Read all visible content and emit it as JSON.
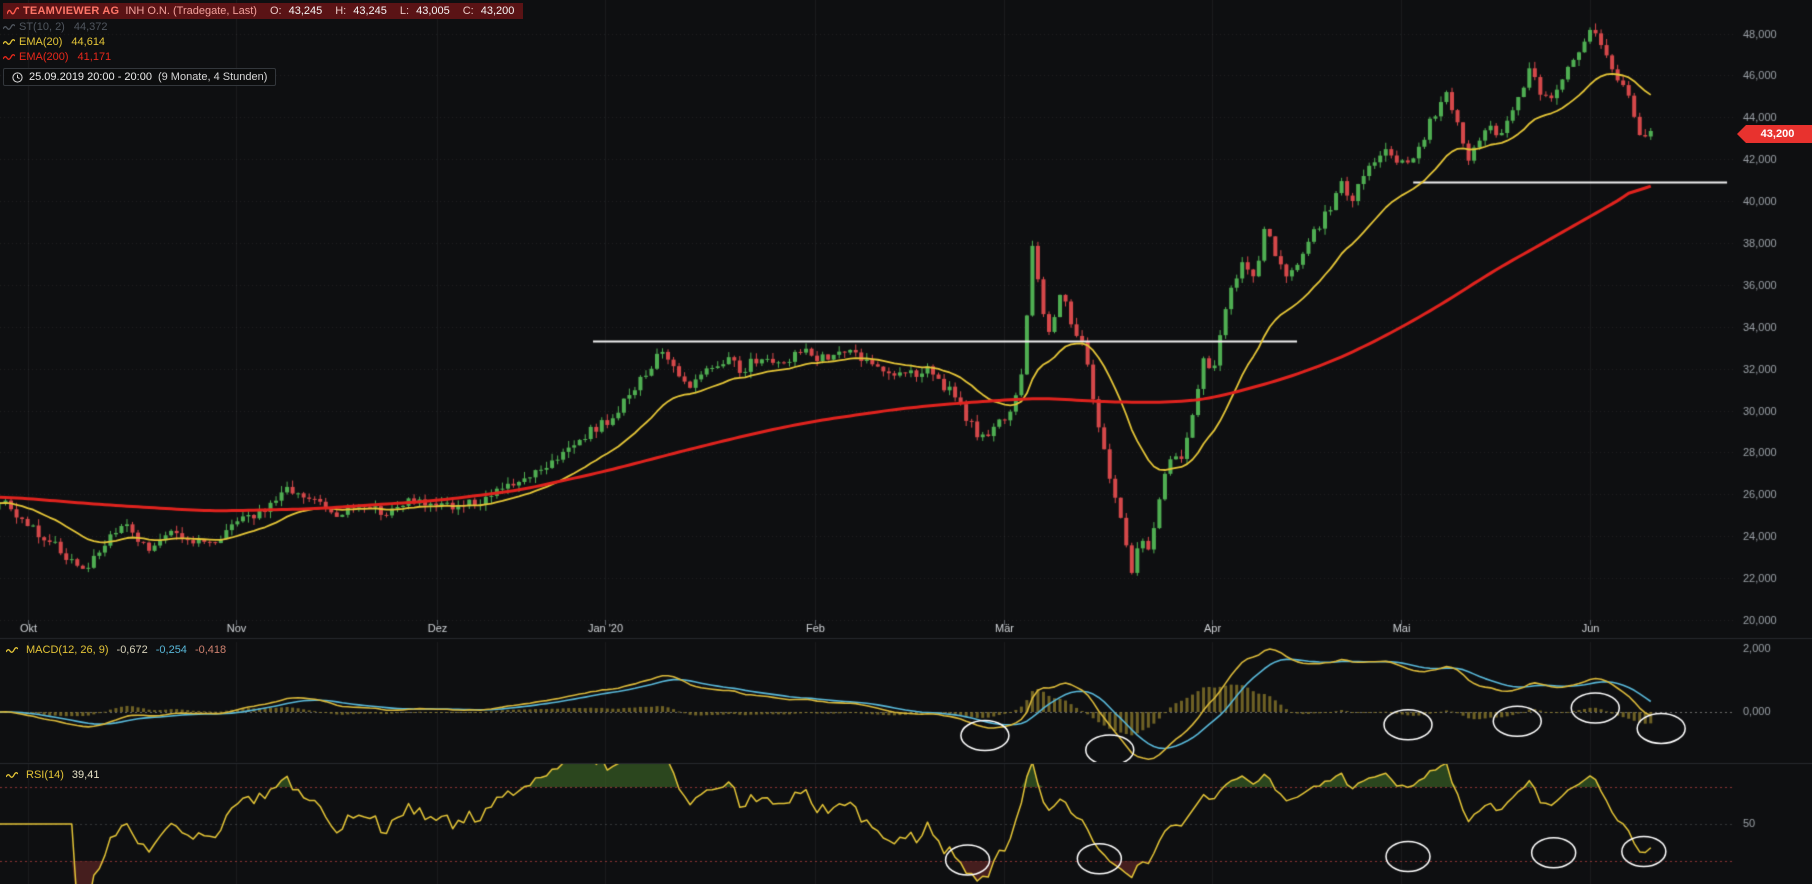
{
  "header": {
    "title": "TEAMVIEWER AG",
    "subtitle": "INH O.N. (Tradegate, Last)",
    "ohlc": {
      "o_label": "O:",
      "o_value": "43,245",
      "h_label": "H:",
      "h_value": "43,245",
      "l_label": "L:",
      "l_value": "43,005",
      "c_label": "C:",
      "c_value": "43,200"
    }
  },
  "indicators": {
    "st": {
      "label": "ST(10, 2)",
      "value": "44,372"
    },
    "ema20": {
      "label": "EMA(20)",
      "value": "44,614"
    },
    "ema200": {
      "label": "EMA(200)",
      "value": "41,171"
    }
  },
  "timebar": {
    "range": "25.09.2019 20:00 - 20:00",
    "period": "(9 Monate, 4 Stunden)"
  },
  "macd_legend": {
    "label": "MACD(12, 26, 9)",
    "v1": "-0,672",
    "v2": "-0,254",
    "v3": "-0,418"
  },
  "rsi_legend": {
    "label": "RSI(14)",
    "value": "39,41"
  },
  "last_price": {
    "value": "43,200"
  },
  "chart_data": {
    "type": "candlestick",
    "instrument": "TEAMVIEWER AG INH O.N. (Tradegate, Last)",
    "timeframe": "4 Stunden",
    "range_label": "9 Monate",
    "price_axis": {
      "min": 20.0,
      "max": 48.0,
      "ticks": [
        20,
        22,
        24,
        26,
        28,
        30,
        32,
        34,
        36,
        38,
        40,
        42,
        44,
        46,
        48
      ],
      "last_price": 43.2
    },
    "current_ohlc": {
      "open": 43.245,
      "high": 43.245,
      "low": 43.005,
      "close": 43.2
    },
    "x_months": [
      {
        "label": "Okt",
        "t": 0.016
      },
      {
        "label": "Nov",
        "t": 0.136
      },
      {
        "label": "Dez",
        "t": 0.252
      },
      {
        "label": "Jan '20",
        "t": 0.349
      },
      {
        "label": "Feb",
        "t": 0.47
      },
      {
        "label": "Mär",
        "t": 0.579
      },
      {
        "label": "Apr",
        "t": 0.699
      },
      {
        "label": "Mai",
        "t": 0.808
      },
      {
        "label": "Jun",
        "t": 0.917
      }
    ],
    "data_end_t": 0.952,
    "candle_count": 300,
    "close_path": [
      [
        0.0,
        25.8
      ],
      [
        0.01,
        24.9
      ],
      [
        0.022,
        24.2
      ],
      [
        0.035,
        23.3
      ],
      [
        0.048,
        22.3
      ],
      [
        0.06,
        23.6
      ],
      [
        0.072,
        24.5
      ],
      [
        0.085,
        23.4
      ],
      [
        0.1,
        24.1
      ],
      [
        0.112,
        23.6
      ],
      [
        0.125,
        23.9
      ],
      [
        0.14,
        24.7
      ],
      [
        0.155,
        25.4
      ],
      [
        0.168,
        26.3
      ],
      [
        0.18,
        25.7
      ],
      [
        0.195,
        24.9
      ],
      [
        0.208,
        25.6
      ],
      [
        0.222,
        25.1
      ],
      [
        0.238,
        25.8
      ],
      [
        0.252,
        25.4
      ],
      [
        0.268,
        25.5
      ],
      [
        0.282,
        25.9
      ],
      [
        0.3,
        26.6
      ],
      [
        0.318,
        27.6
      ],
      [
        0.335,
        28.7
      ],
      [
        0.349,
        29.4
      ],
      [
        0.362,
        30.6
      ],
      [
        0.374,
        31.9
      ],
      [
        0.383,
        33.0
      ],
      [
        0.39,
        32.0
      ],
      [
        0.398,
        31.1
      ],
      [
        0.408,
        31.9
      ],
      [
        0.418,
        32.5
      ],
      [
        0.428,
        31.9
      ],
      [
        0.44,
        32.7
      ],
      [
        0.452,
        32.3
      ],
      [
        0.462,
        32.9
      ],
      [
        0.472,
        32.5
      ],
      [
        0.485,
        32.9
      ],
      [
        0.498,
        32.4
      ],
      [
        0.51,
        32.0
      ],
      [
        0.522,
        31.7
      ],
      [
        0.535,
        31.9
      ],
      [
        0.548,
        30.9
      ],
      [
        0.558,
        29.5
      ],
      [
        0.566,
        28.7
      ],
      [
        0.574,
        29.3
      ],
      [
        0.582,
        29.6
      ],
      [
        0.59,
        32.0
      ],
      [
        0.596,
        38.6
      ],
      [
        0.6,
        35.0
      ],
      [
        0.606,
        33.6
      ],
      [
        0.612,
        35.9
      ],
      [
        0.618,
        33.8
      ],
      [
        0.624,
        33.4
      ],
      [
        0.63,
        30.8
      ],
      [
        0.638,
        27.6
      ],
      [
        0.646,
        25.0
      ],
      [
        0.652,
        22.2
      ],
      [
        0.658,
        24.2
      ],
      [
        0.663,
        23.2
      ],
      [
        0.67,
        26.3
      ],
      [
        0.676,
        28.2
      ],
      [
        0.681,
        27.3
      ],
      [
        0.688,
        30.0
      ],
      [
        0.694,
        32.3
      ],
      [
        0.7,
        31.8
      ],
      [
        0.706,
        34.6
      ],
      [
        0.712,
        36.2
      ],
      [
        0.718,
        37.1
      ],
      [
        0.724,
        36.4
      ],
      [
        0.73,
        38.8
      ],
      [
        0.736,
        37.4
      ],
      [
        0.742,
        36.3
      ],
      [
        0.75,
        37.3
      ],
      [
        0.758,
        38.6
      ],
      [
        0.766,
        39.5
      ],
      [
        0.774,
        40.8
      ],
      [
        0.78,
        40.2
      ],
      [
        0.786,
        41.4
      ],
      [
        0.794,
        41.8
      ],
      [
        0.8,
        42.3
      ],
      [
        0.806,
        42.0
      ],
      [
        0.812,
        41.6
      ],
      [
        0.82,
        42.9
      ],
      [
        0.828,
        44.3
      ],
      [
        0.834,
        45.1
      ],
      [
        0.84,
        43.9
      ],
      [
        0.846,
        42.0
      ],
      [
        0.852,
        42.9
      ],
      [
        0.858,
        43.7
      ],
      [
        0.864,
        43.1
      ],
      [
        0.87,
        44.2
      ],
      [
        0.876,
        45.1
      ],
      [
        0.882,
        46.2
      ],
      [
        0.888,
        45.3
      ],
      [
        0.894,
        44.7
      ],
      [
        0.9,
        45.8
      ],
      [
        0.906,
        46.8
      ],
      [
        0.912,
        47.5
      ],
      [
        0.918,
        48.1
      ],
      [
        0.924,
        47.3
      ],
      [
        0.93,
        46.4
      ],
      [
        0.936,
        45.5
      ],
      [
        0.942,
        44.3
      ],
      [
        0.948,
        42.8
      ],
      [
        0.952,
        43.2
      ]
    ],
    "ema20": {
      "period": 20,
      "last": 44.614
    },
    "ema200": {
      "period": 200,
      "last": 41.171,
      "path": [
        [
          0.0,
          25.9
        ],
        [
          0.06,
          25.5
        ],
        [
          0.12,
          25.2
        ],
        [
          0.18,
          25.3
        ],
        [
          0.252,
          25.7
        ],
        [
          0.3,
          26.2
        ],
        [
          0.349,
          27.1
        ],
        [
          0.4,
          28.2
        ],
        [
          0.44,
          29.0
        ],
        [
          0.47,
          29.5
        ],
        [
          0.52,
          30.1
        ],
        [
          0.56,
          30.4
        ],
        [
          0.6,
          30.6
        ],
        [
          0.64,
          30.4
        ],
        [
          0.68,
          30.4
        ],
        [
          0.7,
          30.6
        ],
        [
          0.74,
          31.5
        ],
        [
          0.77,
          32.4
        ],
        [
          0.8,
          33.6
        ],
        [
          0.83,
          35.0
        ],
        [
          0.86,
          36.6
        ],
        [
          0.89,
          38.0
        ],
        [
          0.92,
          39.4
        ],
        [
          0.945,
          40.6
        ],
        [
          0.952,
          41.2
        ]
      ]
    },
    "supertrend": {
      "label": "ST(10, 2)",
      "last": 44.372
    },
    "resistance_lines": [
      {
        "price": 33.3,
        "t1": 0.342,
        "t2": 0.748
      },
      {
        "price": 40.9,
        "t1": 0.815,
        "t2": 0.996
      }
    ],
    "macd_pane": {
      "params": [
        12,
        26,
        9
      ],
      "last_values": [
        -0.672,
        -0.254,
        -0.418
      ],
      "axis_ticks": [
        {
          "value": 2.0,
          "label": "2,000"
        },
        {
          "value": 0.0,
          "label": "0,000"
        }
      ],
      "circles": [
        {
          "t": 0.568,
          "y": 0.78
        },
        {
          "t": 0.64,
          "y": 0.9
        },
        {
          "t": 0.812,
          "y": 0.69
        },
        {
          "t": 0.875,
          "y": 0.66
        },
        {
          "t": 0.92,
          "y": 0.55
        },
        {
          "t": 0.958,
          "y": 0.72
        }
      ]
    },
    "rsi_pane": {
      "period": 14,
      "last": 39.41,
      "levels": {
        "overbought": 70,
        "mid": 50,
        "oversold": 30
      },
      "axis_ticks": [
        {
          "value": 50,
          "label": "50"
        }
      ],
      "circles": [
        {
          "t": 0.558,
          "y": 0.8
        },
        {
          "t": 0.634,
          "y": 0.79
        },
        {
          "t": 0.812,
          "y": 0.77
        },
        {
          "t": 0.896,
          "y": 0.74
        },
        {
          "t": 0.948,
          "y": 0.73
        }
      ]
    },
    "colors": {
      "background": "#0e0f11",
      "grid": "rgba(255,255,255,0.07)",
      "candle_up": "#4fae52",
      "candle_down": "#d5484a",
      "ema20": "#e3c437",
      "ema200": "#e0231e",
      "macd_line": "#d9b83a",
      "macd_signal": "#58b7d8",
      "macd_hist": "#8f7d2c",
      "rsi_line": "#e3c437",
      "overbought_fill": "#3f6b28",
      "oversold_fill": "#6b2828",
      "level_line": "#8a3434",
      "resistance": "#f0f0f0",
      "annotation": "#ffffff",
      "badge_bg": "#e8322e",
      "axis_text": "#9aa0a6",
      "month_text": "#cfd2d6"
    }
  }
}
